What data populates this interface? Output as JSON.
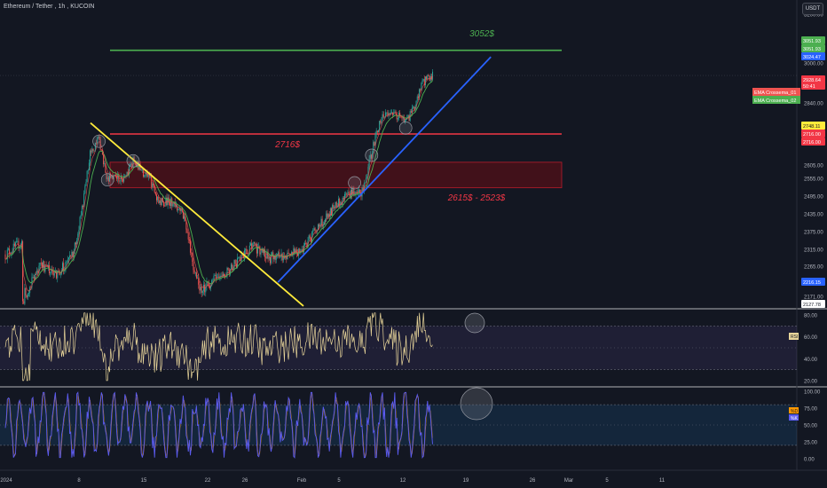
{
  "header": {
    "symbol": "Ethereum / Tether",
    "interval": "1h",
    "exchange": "KUCOIN"
  },
  "currency_button": "USDT",
  "colors": {
    "background": "#131722",
    "support_line": "#2962ff",
    "downtrend_line": "#ffeb3b",
    "target_line": "#4caf50",
    "resistance_line": "#f23645",
    "zone_fill": "#4a1119",
    "price_up": "#26a69a",
    "price_down": "#ef5350",
    "ema_fast": "#ef5350",
    "ema_slow": "#4caf50",
    "rsi_line": "#e8d59a",
    "stoch_k": "#5b5bf0",
    "stoch_d": "#ff9800"
  },
  "annotations": {
    "target": "3052$",
    "resistance": "2716$",
    "zone": "2615$ - 2523$"
  },
  "legend": {
    "ema_fast": "EMA Crossema_01",
    "ema_slow": "EMA Crossema_02"
  },
  "chart_data": [
    {
      "type": "candlestick",
      "title": "Ethereum / Tether, 1h, KUCOIN",
      "price_axis_ticks": [
        3000.0,
        2840.0,
        2605.0,
        2555.0,
        2495.0,
        2435.0,
        2375.0,
        2315.0,
        2265.0,
        2171.0
      ],
      "price_axis_top_tick": "3200.00",
      "time_axis_ticks": [
        "2024",
        "8",
        "15",
        "22",
        "26",
        "Feb",
        "5",
        "12",
        "19",
        "26",
        "Mar",
        "5",
        "11"
      ],
      "price_labels": [
        {
          "value": "3051.93",
          "color": "#4caf50"
        },
        {
          "value": "3051.93",
          "color": "#4caf50"
        },
        {
          "value": "3024.47",
          "color": "#2962ff"
        },
        {
          "value": "2928.64",
          "color": "#f23645"
        },
        {
          "value": "50:41",
          "color": "#f23645"
        },
        {
          "value": "2748.11",
          "color": "#ffeb3b"
        },
        {
          "value": "2716.00",
          "color": "#f23645"
        },
        {
          "value": "2716.00",
          "color": "#f23645"
        },
        {
          "value": "2216.15",
          "color": "#2962ff"
        },
        {
          "value": "2127.78",
          "color": "#ffffff"
        }
      ],
      "levels": {
        "target": 3052,
        "resistance": 2716,
        "zone_top": 2615,
        "zone_bottom": 2523
      },
      "price_path": [
        [
          "2024-01-01",
          2300
        ],
        [
          "2024-01-03",
          2340
        ],
        [
          "2024-01-03",
          2150
        ],
        [
          "2024-01-05",
          2270
        ],
        [
          "2024-01-07",
          2240
        ],
        [
          "2024-01-09",
          2300
        ],
        [
          "2024-01-10",
          2450
        ],
        [
          "2024-01-11",
          2650
        ],
        [
          "2024-01-12",
          2700
        ],
        [
          "2024-01-13",
          2550
        ],
        [
          "2024-01-15",
          2560
        ],
        [
          "2024-01-16",
          2620
        ],
        [
          "2024-01-18",
          2550
        ],
        [
          "2024-01-19",
          2480
        ],
        [
          "2024-01-21",
          2470
        ],
        [
          "2024-01-22",
          2420
        ],
        [
          "2024-01-23",
          2270
        ],
        [
          "2024-01-24",
          2190
        ],
        [
          "2024-01-26",
          2230
        ],
        [
          "2024-01-28",
          2270
        ],
        [
          "2024-01-30",
          2330
        ],
        [
          "2024-02-01",
          2290
        ],
        [
          "2024-02-03",
          2300
        ],
        [
          "2024-02-05",
          2320
        ],
        [
          "2024-02-07",
          2400
        ],
        [
          "2024-02-09",
          2470
        ],
        [
          "2024-02-11",
          2510
        ],
        [
          "2024-02-12",
          2510
        ],
        [
          "2024-02-13",
          2650
        ],
        [
          "2024-02-14",
          2770
        ],
        [
          "2024-02-15",
          2800
        ],
        [
          "2024-02-16",
          2790
        ],
        [
          "2024-02-17",
          2760
        ],
        [
          "2024-02-18",
          2820
        ],
        [
          "2024-02-19",
          2920
        ],
        [
          "2024-02-20",
          2950
        ]
      ],
      "trendlines": [
        {
          "name": "downtrend",
          "from": [
            "2024-01-11",
            2760
          ],
          "to": [
            "2024-02-05",
            2140
          ]
        },
        {
          "name": "uptrend support",
          "from": [
            "2024-02-02",
            2215
          ],
          "to": [
            "2024-02-27",
            3025
          ]
        }
      ]
    },
    {
      "type": "line",
      "title": "RSI",
      "legend_label": "RSI",
      "y_ticks": [
        80.0,
        60.0,
        40.0,
        20.0
      ],
      "levels": [
        70,
        30
      ],
      "ylim": [
        15,
        85
      ]
    },
    {
      "type": "line",
      "title": "Stoch",
      "legend_labels": [
        "%D",
        "%K"
      ],
      "y_ticks": [
        100.0,
        75.0,
        50.0,
        25.0,
        0.0
      ],
      "levels": [
        80,
        20
      ],
      "ylim": [
        -5,
        105
      ]
    }
  ]
}
